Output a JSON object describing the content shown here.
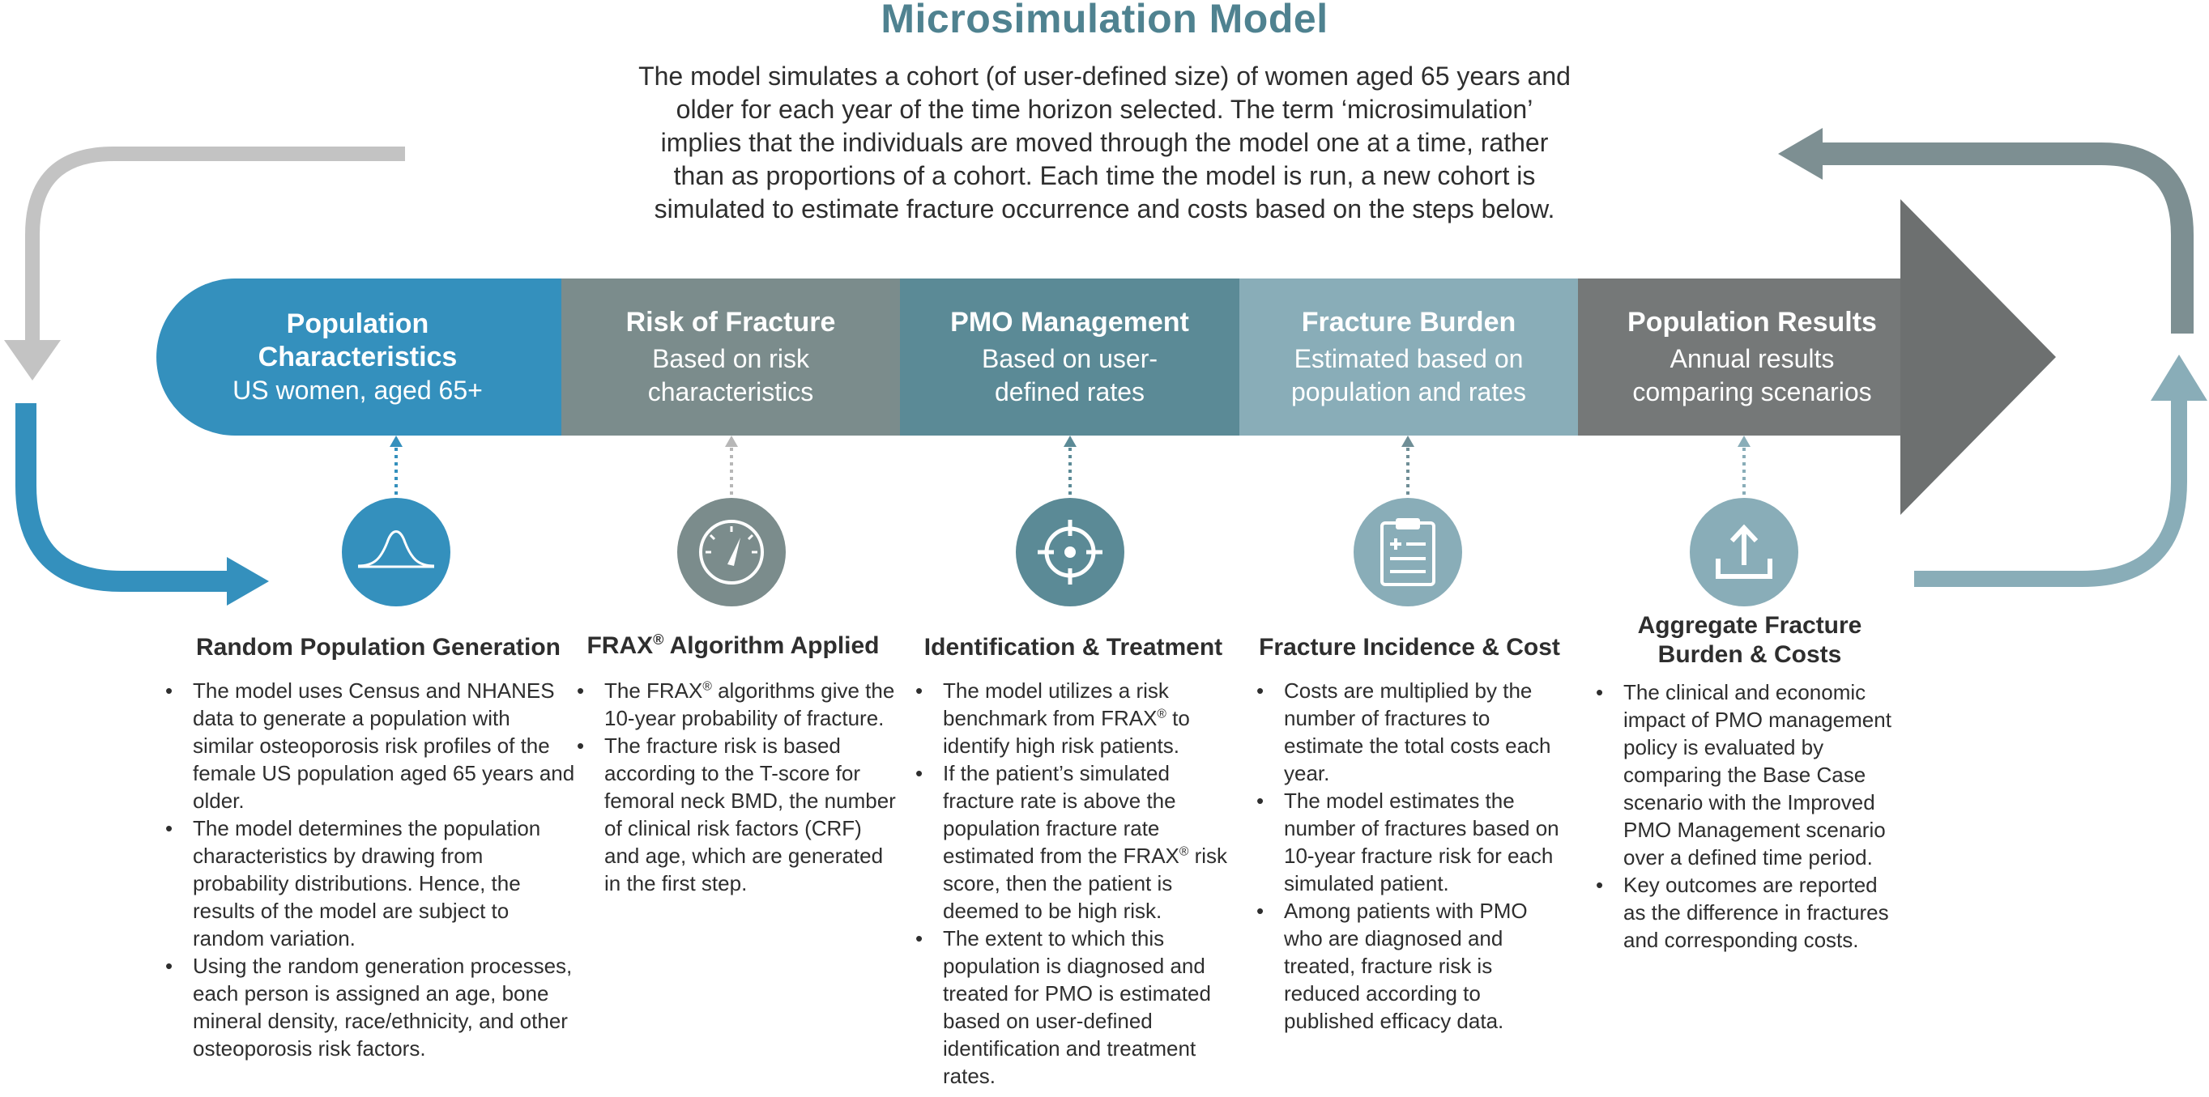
{
  "title": "Microsimulation Model",
  "intro": {
    "line1": "The model simulates a cohort (of user-defined size) of women aged 65 years and",
    "line2": "older for each year of the time horizon selected. The term ‘microsimulation’",
    "line3": "implies that the individuals are moved through the model one at a time, rather",
    "line4": "than as proportions of a cohort. Each time the model is run, a new cohort is",
    "line5": "simulated to estimate fracture occurrence and costs based on the steps below."
  },
  "colors": {
    "title": "#4f8290",
    "band1": "#3490bd",
    "band2": "#7b8c8c",
    "band3": "#5b8a96",
    "band4": "#89adb8",
    "band5": "#757878",
    "arrow_head": "#6d7070",
    "loop_left_top": "#c3c3c3",
    "loop_left_bottom": "#3490bd",
    "loop_right_top": "#7d8f92",
    "loop_right_bottom": "#89adb8"
  },
  "stages": [
    {
      "title_line1": "Population",
      "title_line2": "Characteristics",
      "sub_line1": "US women, aged 65+"
    },
    {
      "title_line1": "Risk of Fracture",
      "sub_line1": "Based on risk",
      "sub_line2": "characteristics"
    },
    {
      "title_line1": "PMO Management",
      "sub_line1": "Based on user-",
      "sub_line2": "defined rates"
    },
    {
      "title_line1": "Fracture Burden",
      "sub_line1": "Estimated based on",
      "sub_line2": "population and rates"
    },
    {
      "title_line1": "Population Results",
      "sub_line1": "Annual results",
      "sub_line2": "comparing scenarios"
    }
  ],
  "icons": [
    {
      "name": "bell-curve-icon",
      "color": "#3490bd"
    },
    {
      "name": "gauge-icon",
      "color": "#7b8c8c"
    },
    {
      "name": "crosshair-target-icon",
      "color": "#5b8a96"
    },
    {
      "name": "clipboard-icon",
      "color": "#89adb8"
    },
    {
      "name": "upload-icon",
      "color": "#89adb8"
    }
  ],
  "columns": [
    {
      "heading": "Random Population Generation",
      "bullets": [
        "The model uses Census and NHANES data to generate a population with similar osteoporosis risk profiles of the female US population aged 65 years and older.",
        "The model determines the population characteristics by drawing from probability distributions. Hence, the results of the model are subject to random variation.",
        "Using the random generation processes, each person is assigned an age, bone mineral density, race/ethnicity, and other osteoporosis risk factors."
      ]
    },
    {
      "heading_pre": "FRAX",
      "heading_sup": "®",
      "heading_post": " Algorithm Applied",
      "bullets": [
        {
          "pre": "The FRAX",
          "sup": "®",
          "post": " algorithms give the 10-year probability of fracture."
        },
        {
          "pre": "The fracture risk is based according to the T-score for femoral neck BMD, the number of clinical risk factors (CRF) and age, which are generated in the first step."
        }
      ]
    },
    {
      "heading": "Identification & Treatment",
      "bullets": [
        {
          "pre": "The model utilizes a risk benchmark from FRAX",
          "sup": "®",
          "post": " to identify high risk patients."
        },
        {
          "pre": "If the patient’s simulated fracture rate is above the population fracture rate estimated from the FRAX",
          "sup": "®",
          "post": " risk score, then the patient is deemed to be high risk."
        },
        {
          "pre": "The extent to which this population is diagnosed and treated for PMO is estimated based on user-defined identification and treatment rates."
        }
      ]
    },
    {
      "heading": "Fracture Incidence & Cost",
      "bullets": [
        "Costs are multiplied by the number of fractures to estimate the total costs each year.",
        "The model estimates the number of fractures based on 10-year fracture risk for each simulated patient.",
        "Among patients with PMO who are diagnosed and treated, fracture risk is reduced according to published efficacy data."
      ]
    },
    {
      "heading_line1": "Aggregate Fracture",
      "heading_line2": "Burden & Costs",
      "bullets": [
        "The clinical and economic impact of PMO management policy is evaluated by comparing the Base Case scenario with the Improved PMO Management scenario over a defined time period.",
        "Key outcomes are reported as the difference in fractures and corresponding costs."
      ]
    }
  ]
}
